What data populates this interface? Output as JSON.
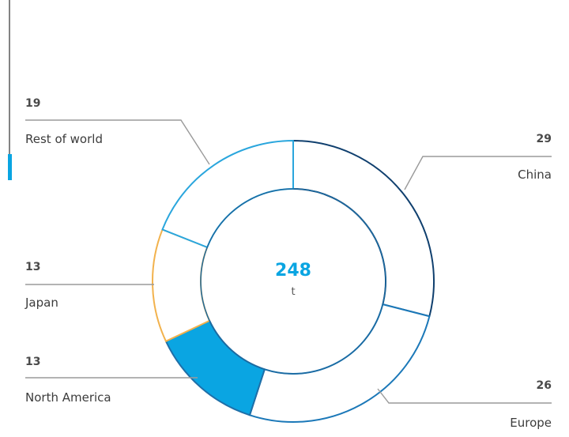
{
  "colors": {
    "accent": "#0aa5e2",
    "leader": "#9a9a9a",
    "inner_ring": "#1c6aa0",
    "sidebar_track": "#5a5a5a"
  },
  "chart_data": {
    "type": "pie",
    "style": "donut",
    "total": "248",
    "unit": "t",
    "slices": [
      {
        "name": "China",
        "value": 29,
        "value_label": "29",
        "color": "#0f3f6e",
        "fill": "#ffffff"
      },
      {
        "name": "Europe",
        "value": 26,
        "value_label": "26",
        "color": "#1b78b8",
        "fill": "#ffffff"
      },
      {
        "name": "North America",
        "value": 13,
        "value_label": "13",
        "color": "#1f6fa8",
        "fill": "#0aa5e2"
      },
      {
        "name": "Japan",
        "value": 13,
        "value_label": "13",
        "color": "#f2b24d",
        "fill": "#ffffff"
      },
      {
        "name": "Rest of world",
        "value": 19,
        "value_label": "19",
        "color": "#2aa6dd",
        "fill": "#ffffff"
      }
    ]
  }
}
